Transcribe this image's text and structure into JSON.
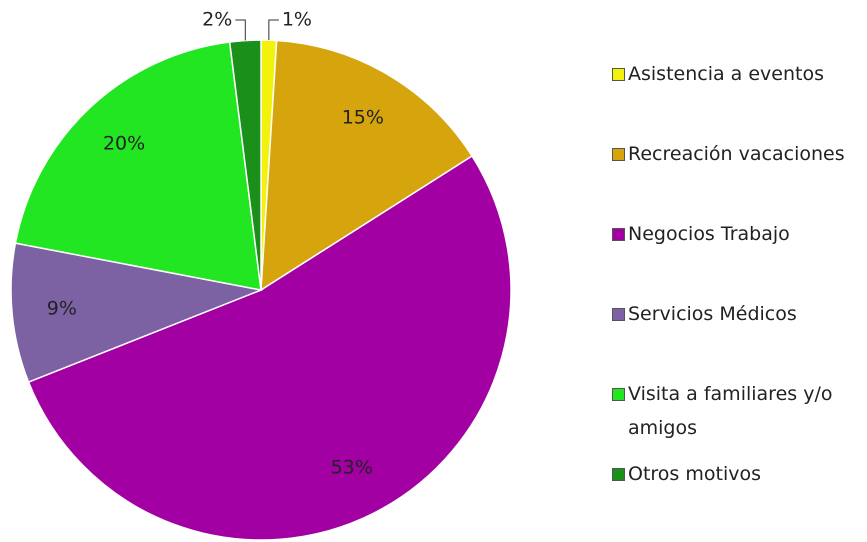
{
  "chart_data": {
    "type": "pie",
    "categories": [
      "Asistencia a eventos",
      "Recreación vacaciones",
      "Negocios Trabajo",
      "Servicios Médicos",
      "Visita a familiares y/o amigos",
      "Otros motivos"
    ],
    "values": [
      1,
      15,
      53,
      9,
      20,
      2
    ],
    "value_labels": [
      "1%",
      "15%",
      "53%",
      "9%",
      "20%",
      "2%"
    ],
    "colors": [
      "#f2f20c",
      "#d6a50e",
      "#a200a2",
      "#7d62a3",
      "#22e622",
      "#1a8f1a"
    ]
  }
}
